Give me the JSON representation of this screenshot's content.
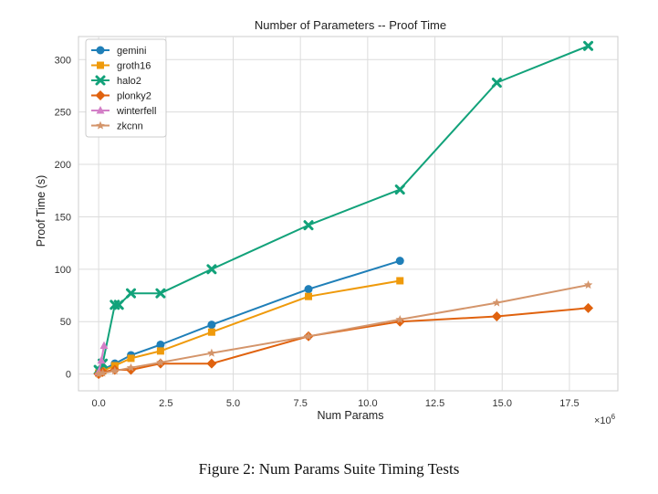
{
  "chart_data": {
    "type": "line",
    "title": "Number of Parameters -- Proof Time",
    "xlabel": "Num Params",
    "ylabel": "Proof Time (s)",
    "x_offset_label": "×10",
    "x_offset_exponent": "6",
    "xlim": [
      -0.75,
      19.3
    ],
    "ylim": [
      -16,
      322
    ],
    "xticks": [
      0.0,
      2.5,
      5.0,
      7.5,
      10.0,
      12.5,
      15.0,
      17.5
    ],
    "xtick_labels": [
      "0.0",
      "2.5",
      "5.0",
      "7.5",
      "10.0",
      "12.5",
      "15.0",
      "17.5"
    ],
    "yticks": [
      0,
      50,
      100,
      150,
      200,
      250,
      300
    ],
    "ytick_labels": [
      "0",
      "50",
      "100",
      "150",
      "200",
      "250",
      "300"
    ],
    "grid": true,
    "legend_position": "top-left",
    "x_unit_note": "x values in millions (×10^6)",
    "series": [
      {
        "name": "gemini",
        "color": "#1f7fb8",
        "marker": "circle",
        "x": [
          0.0,
          0.15,
          0.6,
          1.2,
          2.3,
          4.2,
          7.8,
          11.2
        ],
        "y": [
          1,
          4,
          10,
          18,
          28,
          47,
          81,
          108
        ]
      },
      {
        "name": "groth16",
        "color": "#ef9a0b",
        "marker": "square",
        "x": [
          0.0,
          0.15,
          0.6,
          1.2,
          2.3,
          4.2,
          7.8,
          11.2
        ],
        "y": [
          1,
          3,
          8,
          15,
          22,
          40,
          74,
          89
        ]
      },
      {
        "name": "halo2",
        "color": "#12a27a",
        "marker": "x",
        "x": [
          0.0,
          0.15,
          0.6,
          0.75,
          1.2,
          2.3,
          4.2,
          7.8,
          11.2,
          14.8,
          18.2
        ],
        "y": [
          4,
          10,
          66,
          66,
          77,
          77,
          100,
          142,
          176,
          278,
          313
        ]
      },
      {
        "name": "plonky2",
        "color": "#e0620e",
        "marker": "diamond",
        "x": [
          0.0,
          0.15,
          0.6,
          1.2,
          2.3,
          4.2,
          7.8,
          11.2,
          14.8,
          18.2
        ],
        "y": [
          0,
          2,
          4,
          4,
          10,
          10,
          36,
          50,
          55,
          63
        ]
      },
      {
        "name": "winterfell",
        "color": "#d37fc7",
        "marker": "triangle",
        "x": [
          0.0,
          0.1,
          0.2
        ],
        "y": [
          2,
          13,
          27
        ]
      },
      {
        "name": "zkcnn",
        "color": "#d4956b",
        "marker": "star",
        "x": [
          0.0,
          0.15,
          0.6,
          1.2,
          2.3,
          4.2,
          7.8,
          11.2,
          14.8,
          18.2
        ],
        "y": [
          0,
          1,
          3,
          6,
          11,
          20,
          36,
          52,
          68,
          85
        ]
      }
    ]
  },
  "caption": "Figure 2: Num Params Suite Timing Tests"
}
